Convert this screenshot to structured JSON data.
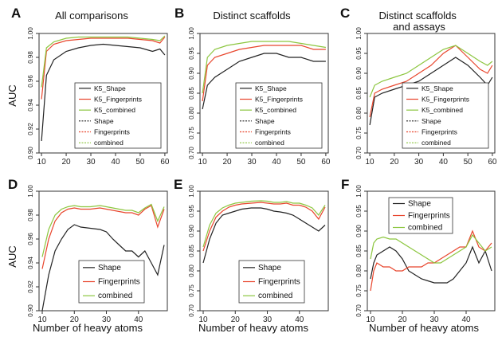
{
  "figure": {
    "ylabel_top": "AUC",
    "ylabel_bottom": "AUC",
    "xlabel_bottom": "Number of heavy atoms"
  },
  "chart_data": [
    {
      "type": "line",
      "panel": "A",
      "title": "All comparisons",
      "xlim": [
        9,
        61
      ],
      "ylim": [
        0.9,
        1.0
      ],
      "xticks": [
        "10",
        "20",
        "30",
        "40",
        "50",
        "60"
      ],
      "xtick_values": [
        10,
        20,
        30,
        40,
        50,
        60
      ],
      "yticks": [
        "0.90",
        "0.92",
        "0.94",
        "0.96",
        "0.98",
        "1.00"
      ],
      "ytick_values": [
        0.9,
        0.92,
        0.94,
        0.96,
        0.98,
        1.0
      ],
      "legend": [
        "K5_Shape",
        "K5_Fingerprints",
        "K5_combined",
        "Shape",
        "Fingerprints",
        "combined"
      ],
      "series": [
        {
          "name": "K5_Shape",
          "color": "#222222",
          "x": [
            10,
            12,
            15,
            20,
            25,
            30,
            35,
            40,
            45,
            50,
            55,
            58,
            60
          ],
          "values": [
            0.91,
            0.965,
            0.978,
            0.985,
            0.988,
            0.99,
            0.991,
            0.99,
            0.989,
            0.988,
            0.985,
            0.987,
            0.982
          ]
        },
        {
          "name": "K5_Fingerprints",
          "color": "#e8452c",
          "x": [
            10,
            12,
            15,
            20,
            25,
            30,
            35,
            40,
            45,
            50,
            55,
            58,
            60
          ],
          "values": [
            0.945,
            0.985,
            0.991,
            0.994,
            0.995,
            0.996,
            0.996,
            0.996,
            0.996,
            0.995,
            0.994,
            0.992,
            0.997
          ]
        },
        {
          "name": "K5_combined",
          "color": "#8cc63f",
          "x": [
            10,
            12,
            15,
            20,
            25,
            30,
            35,
            40,
            45,
            50,
            55,
            58,
            60
          ],
          "values": [
            0.955,
            0.988,
            0.993,
            0.996,
            0.997,
            0.997,
            0.997,
            0.997,
            0.997,
            0.996,
            0.995,
            0.994,
            0.998
          ]
        }
      ]
    },
    {
      "type": "line",
      "panel": "B",
      "title": "Distinct scaffolds",
      "xlim": [
        9,
        61
      ],
      "ylim": [
        0.7,
        1.0
      ],
      "xticks": [
        "10",
        "20",
        "30",
        "40",
        "50",
        "60"
      ],
      "xtick_values": [
        10,
        20,
        30,
        40,
        50,
        60
      ],
      "yticks": [
        "0.70",
        "0.75",
        "0.80",
        "0.85",
        "0.90",
        "0.95",
        "1.00"
      ],
      "ytick_values": [
        0.7,
        0.75,
        0.8,
        0.85,
        0.9,
        0.95,
        1.0
      ],
      "legend": [
        "K5_Shape",
        "K5_Fingerprints",
        "K5_combined",
        "Shape",
        "Fingerprints",
        "combined"
      ],
      "series": [
        {
          "name": "K5_Shape",
          "color": "#222222",
          "x": [
            10,
            12,
            15,
            20,
            25,
            30,
            35,
            40,
            45,
            50,
            55,
            60
          ],
          "values": [
            0.81,
            0.87,
            0.89,
            0.91,
            0.93,
            0.94,
            0.95,
            0.95,
            0.94,
            0.94,
            0.93,
            0.93
          ]
        },
        {
          "name": "K5_Fingerprints",
          "color": "#e8452c",
          "x": [
            10,
            12,
            15,
            20,
            25,
            30,
            35,
            40,
            45,
            50,
            55,
            60
          ],
          "values": [
            0.83,
            0.92,
            0.94,
            0.95,
            0.96,
            0.965,
            0.97,
            0.97,
            0.97,
            0.97,
            0.96,
            0.96
          ]
        },
        {
          "name": "K5_combined",
          "color": "#8cc63f",
          "x": [
            10,
            12,
            15,
            20,
            25,
            30,
            35,
            40,
            45,
            50,
            55,
            60
          ],
          "values": [
            0.85,
            0.94,
            0.96,
            0.97,
            0.975,
            0.98,
            0.98,
            0.98,
            0.98,
            0.975,
            0.97,
            0.965
          ]
        }
      ]
    },
    {
      "type": "line",
      "panel": "C",
      "title": "Distinct scaffolds\nand assays",
      "xlim": [
        9,
        61
      ],
      "ylim": [
        0.7,
        1.0
      ],
      "xticks": [
        "10",
        "20",
        "30",
        "40",
        "50",
        "60"
      ],
      "xtick_values": [
        10,
        20,
        30,
        40,
        50,
        60
      ],
      "yticks": [
        "0.70",
        "0.75",
        "0.80",
        "0.85",
        "0.90",
        "0.95",
        "1.00"
      ],
      "ytick_values": [
        0.7,
        0.75,
        0.8,
        0.85,
        0.9,
        0.95,
        1.0
      ],
      "legend": [
        "K5_Shape",
        "K5_Fingerprints",
        "K5_combined",
        "Shape",
        "Fingerprints",
        "combined"
      ],
      "series": [
        {
          "name": "K5_Shape",
          "color": "#222222",
          "x": [
            10,
            12,
            15,
            20,
            25,
            30,
            35,
            40,
            45,
            50,
            55,
            58,
            60
          ],
          "values": [
            0.77,
            0.84,
            0.85,
            0.86,
            0.87,
            0.88,
            0.9,
            0.92,
            0.94,
            0.92,
            0.89,
            0.87,
            0.89
          ]
        },
        {
          "name": "K5_Fingerprints",
          "color": "#e8452c",
          "x": [
            10,
            12,
            15,
            20,
            25,
            30,
            35,
            40,
            45,
            50,
            55,
            58,
            60
          ],
          "values": [
            0.79,
            0.85,
            0.86,
            0.87,
            0.88,
            0.9,
            0.92,
            0.95,
            0.97,
            0.94,
            0.91,
            0.9,
            0.92
          ]
        },
        {
          "name": "K5_combined",
          "color": "#8cc63f",
          "x": [
            10,
            12,
            15,
            20,
            25,
            30,
            35,
            40,
            45,
            50,
            55,
            58,
            60
          ],
          "values": [
            0.84,
            0.87,
            0.88,
            0.89,
            0.9,
            0.92,
            0.94,
            0.96,
            0.97,
            0.95,
            0.93,
            0.92,
            0.93
          ]
        }
      ]
    },
    {
      "type": "line",
      "panel": "D",
      "xlim": [
        9,
        49
      ],
      "ylim": [
        0.9,
        1.0
      ],
      "xticks": [
        "10",
        "20",
        "30",
        "40"
      ],
      "xtick_values": [
        10,
        20,
        30,
        40
      ],
      "yticks": [
        "0.90",
        "0.92",
        "0.94",
        "0.96",
        "0.98",
        "1.00"
      ],
      "ytick_values": [
        0.9,
        0.92,
        0.94,
        0.96,
        0.98,
        1.0
      ],
      "legend": [
        "Shape",
        "Fingerprints",
        "combined"
      ],
      "series": [
        {
          "name": "Shape",
          "color": "#222222",
          "x": [
            10,
            12,
            14,
            16,
            18,
            20,
            22,
            25,
            28,
            30,
            32,
            34,
            36,
            38,
            40,
            42,
            44,
            46,
            48
          ],
          "values": [
            0.9,
            0.93,
            0.95,
            0.96,
            0.968,
            0.972,
            0.97,
            0.969,
            0.968,
            0.966,
            0.96,
            0.955,
            0.95,
            0.95,
            0.945,
            0.95,
            0.94,
            0.93,
            0.955
          ]
        },
        {
          "name": "Fingerprints",
          "color": "#e8452c",
          "x": [
            10,
            12,
            14,
            16,
            18,
            20,
            22,
            25,
            28,
            30,
            32,
            34,
            36,
            38,
            40,
            42,
            44,
            46,
            48
          ],
          "values": [
            0.935,
            0.96,
            0.975,
            0.982,
            0.985,
            0.986,
            0.985,
            0.985,
            0.986,
            0.985,
            0.984,
            0.983,
            0.982,
            0.982,
            0.98,
            0.985,
            0.988,
            0.97,
            0.985
          ]
        },
        {
          "name": "combined",
          "color": "#8cc63f",
          "x": [
            10,
            12,
            14,
            16,
            18,
            20,
            22,
            25,
            28,
            30,
            32,
            34,
            36,
            38,
            40,
            42,
            44,
            46,
            48
          ],
          "values": [
            0.945,
            0.968,
            0.98,
            0.985,
            0.987,
            0.988,
            0.987,
            0.987,
            0.988,
            0.987,
            0.986,
            0.985,
            0.984,
            0.984,
            0.982,
            0.986,
            0.989,
            0.975,
            0.987
          ]
        }
      ]
    },
    {
      "type": "line",
      "panel": "E",
      "xlim": [
        9,
        49
      ],
      "ylim": [
        0.7,
        1.0
      ],
      "xticks": [
        "10",
        "20",
        "30",
        "40"
      ],
      "xtick_values": [
        10,
        20,
        30,
        40
      ],
      "yticks": [
        "0.70",
        "0.75",
        "0.80",
        "0.85",
        "0.90",
        "0.95",
        "1.00"
      ],
      "ytick_values": [
        0.7,
        0.75,
        0.8,
        0.85,
        0.9,
        0.95,
        1.0
      ],
      "legend": [
        "Shape",
        "Fingerprints",
        "combined"
      ],
      "series": [
        {
          "name": "Shape",
          "color": "#222222",
          "x": [
            10,
            12,
            14,
            16,
            18,
            20,
            22,
            25,
            28,
            30,
            32,
            34,
            36,
            38,
            40,
            42,
            44,
            46,
            48
          ],
          "values": [
            0.82,
            0.88,
            0.92,
            0.94,
            0.945,
            0.95,
            0.955,
            0.958,
            0.958,
            0.955,
            0.95,
            0.948,
            0.945,
            0.94,
            0.93,
            0.92,
            0.91,
            0.9,
            0.915
          ]
        },
        {
          "name": "Fingerprints",
          "color": "#e8452c",
          "x": [
            10,
            12,
            14,
            16,
            18,
            20,
            22,
            25,
            28,
            30,
            32,
            34,
            36,
            38,
            40,
            42,
            44,
            46,
            48
          ],
          "values": [
            0.85,
            0.9,
            0.935,
            0.95,
            0.96,
            0.965,
            0.968,
            0.97,
            0.972,
            0.97,
            0.968,
            0.968,
            0.97,
            0.965,
            0.965,
            0.96,
            0.95,
            0.93,
            0.96
          ]
        },
        {
          "name": "combined",
          "color": "#8cc63f",
          "x": [
            10,
            12,
            14,
            16,
            18,
            20,
            22,
            25,
            28,
            30,
            32,
            34,
            36,
            38,
            40,
            42,
            44,
            46,
            48
          ],
          "values": [
            0.86,
            0.915,
            0.945,
            0.958,
            0.965,
            0.97,
            0.972,
            0.975,
            0.976,
            0.975,
            0.972,
            0.972,
            0.974,
            0.97,
            0.97,
            0.965,
            0.958,
            0.94,
            0.965
          ]
        }
      ]
    },
    {
      "type": "line",
      "panel": "F",
      "xlim": [
        9,
        49
      ],
      "ylim": [
        0.7,
        1.0
      ],
      "xticks": [
        "10",
        "20",
        "30",
        "40"
      ],
      "xtick_values": [
        10,
        20,
        30,
        40
      ],
      "yticks": [
        "0.70",
        "0.75",
        "0.80",
        "0.85",
        "0.90",
        "0.95",
        "1.00"
      ],
      "ytick_values": [
        0.7,
        0.75,
        0.8,
        0.85,
        0.9,
        0.95,
        1.0
      ],
      "legend": [
        "Shape",
        "Fingerprints",
        "combined"
      ],
      "series": [
        {
          "name": "Shape",
          "color": "#222222",
          "x": [
            10,
            11,
            12,
            14,
            16,
            18,
            20,
            22,
            24,
            26,
            28,
            30,
            32,
            34,
            36,
            38,
            40,
            42,
            44,
            46,
            48
          ],
          "values": [
            0.78,
            0.82,
            0.84,
            0.85,
            0.86,
            0.85,
            0.83,
            0.8,
            0.79,
            0.78,
            0.775,
            0.77,
            0.77,
            0.77,
            0.78,
            0.8,
            0.82,
            0.86,
            0.82,
            0.85,
            0.8
          ]
        },
        {
          "name": "Fingerprints",
          "color": "#e8452c",
          "x": [
            10,
            11,
            12,
            14,
            16,
            18,
            20,
            22,
            24,
            26,
            28,
            30,
            32,
            34,
            36,
            38,
            40,
            42,
            44,
            46,
            48
          ],
          "values": [
            0.75,
            0.8,
            0.82,
            0.81,
            0.81,
            0.8,
            0.8,
            0.81,
            0.81,
            0.81,
            0.82,
            0.82,
            0.83,
            0.84,
            0.85,
            0.86,
            0.86,
            0.9,
            0.86,
            0.85,
            0.87
          ]
        },
        {
          "name": "combined",
          "color": "#8cc63f",
          "x": [
            10,
            11,
            12,
            14,
            16,
            18,
            20,
            22,
            24,
            26,
            28,
            30,
            32,
            34,
            36,
            38,
            40,
            42,
            44,
            46,
            48
          ],
          "values": [
            0.83,
            0.87,
            0.88,
            0.885,
            0.88,
            0.88,
            0.87,
            0.86,
            0.85,
            0.84,
            0.83,
            0.82,
            0.82,
            0.83,
            0.84,
            0.85,
            0.86,
            0.89,
            0.87,
            0.85,
            0.86
          ]
        }
      ]
    }
  ]
}
